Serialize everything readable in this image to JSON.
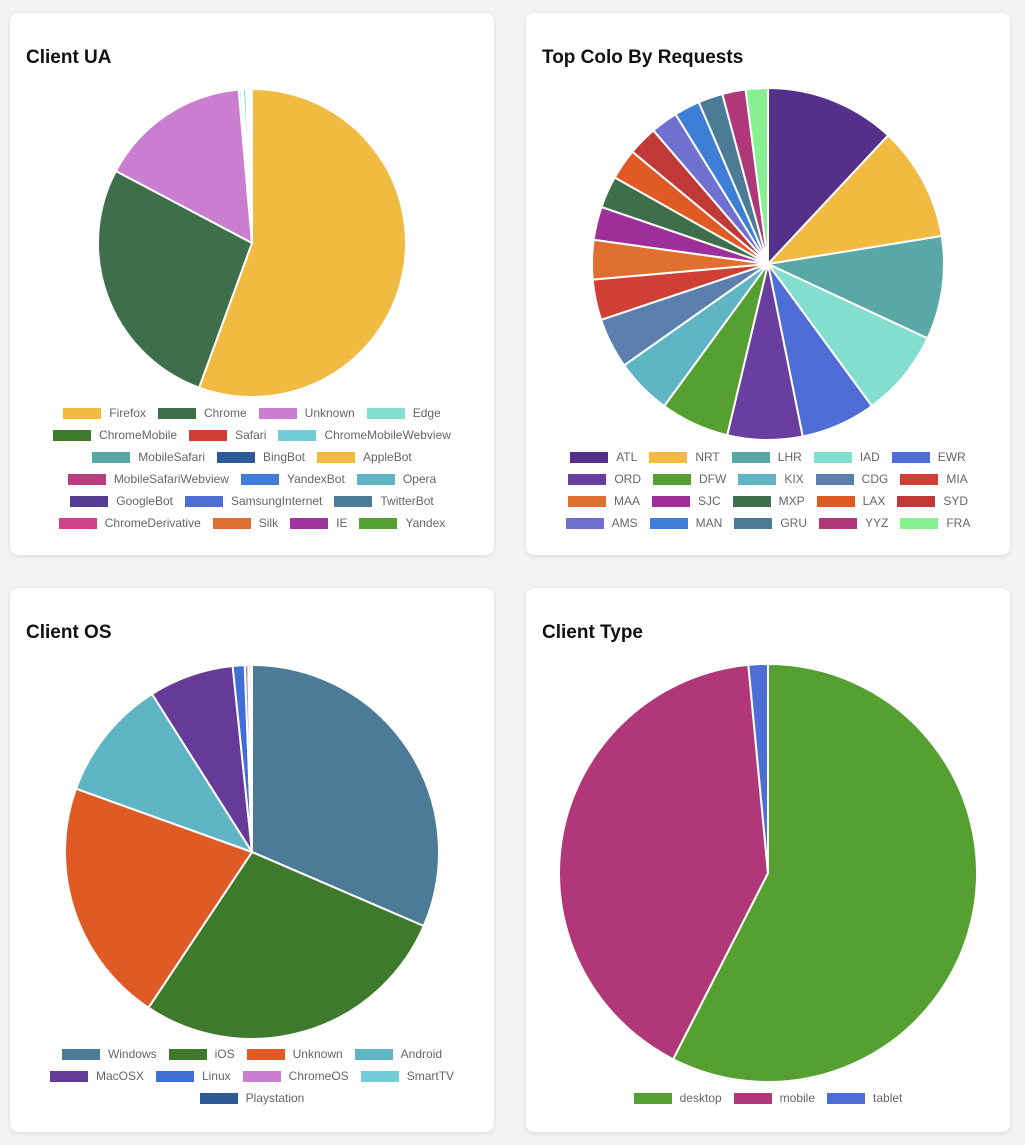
{
  "chart_data": [
    {
      "type": "pie",
      "title": "Client UA",
      "categories": [
        "Firefox",
        "Chrome",
        "Unknown",
        "Edge",
        "ChromeMobile",
        "Safari",
        "ChromeMobileWebview",
        "MobileSafari",
        "BingBot",
        "AppleBot",
        "MobileSafariWebview",
        "YandexBot",
        "Opera",
        "GoogleBot",
        "SamsungInternet",
        "TwitterBot",
        "ChromeDerivative",
        "Silk",
        "IE",
        "Yandex"
      ],
      "values": [
        53.2,
        26.0,
        15.2,
        0.25,
        0.1,
        0.08,
        0.3,
        0.1,
        0.05,
        0.05,
        0.05,
        0.05,
        0.05,
        0.04,
        0.04,
        0.04,
        0.03,
        0.03,
        0.03,
        0.03
      ],
      "colors": [
        "#f0bb40",
        "#3f6e4a",
        "#c97ecf",
        "#84ded0",
        "#3f7a2c",
        "#cf3f35",
        "#73cdd6",
        "#5aa8a5",
        "#2d5a96",
        "#f0bb40",
        "#b5407d",
        "#3f7ed6",
        "#60b5c4",
        "#553d91",
        "#4e6ed6",
        "#4b7b96",
        "#d0408d",
        "#e07030",
        "#a0339d",
        "#55a030"
      ],
      "legend_position": "bottom"
    },
    {
      "type": "pie",
      "title": "Top Colo By Requests",
      "categories": [
        "ATL",
        "NRT",
        "LHR",
        "IAD",
        "EWR",
        "ORD",
        "DFW",
        "KIX",
        "CDG",
        "MIA",
        "MAA",
        "SJC",
        "MXP",
        "LAX",
        "SYD",
        "AMS",
        "MAN",
        "GRU",
        "YYZ",
        "FRA"
      ],
      "values": [
        10.6,
        9.3,
        8.4,
        7.1,
        6.1,
        6.1,
        5.6,
        4.6,
        4.1,
        3.3,
        3.2,
        2.7,
        2.6,
        2.5,
        2.4,
        2.2,
        2.1,
        2.0,
        1.9,
        1.8
      ],
      "colors": [
        "#55308b",
        "#f0bb40",
        "#5aa8a5",
        "#84ded0",
        "#4e6ed6",
        "#6a3e9e",
        "#55a030",
        "#60b5c4",
        "#5d7fae",
        "#cf3f35",
        "#e07030",
        "#9e2f9a",
        "#3f6e4a",
        "#e05a25",
        "#c03838",
        "#7070d0",
        "#3f7ed6",
        "#4b7b96",
        "#b03879",
        "#88f090"
      ],
      "legend_position": "bottom"
    },
    {
      "type": "pie",
      "title": "Client OS",
      "categories": [
        "Windows",
        "iOS",
        "Unknown",
        "Android",
        "MacOSX",
        "Linux",
        "ChromeOS",
        "SmartTV",
        "Playstation"
      ],
      "values": [
        30.5,
        27.0,
        20.5,
        10.2,
        7.1,
        1.0,
        0.3,
        0.2,
        0.1
      ],
      "colors": [
        "#4b7b96",
        "#3f7a2c",
        "#e05a25",
        "#60b5c4",
        "#663a99",
        "#3f6ed6",
        "#c97ecf",
        "#73cdd6",
        "#2d5a96"
      ],
      "legend_position": "bottom"
    },
    {
      "type": "pie",
      "title": "Client Type",
      "categories": [
        "desktop",
        "mobile",
        "tablet"
      ],
      "values": [
        57.5,
        41.0,
        1.5
      ],
      "colors": [
        "#55a030",
        "#b03879",
        "#4e6ed6"
      ],
      "legend_position": "bottom"
    }
  ]
}
